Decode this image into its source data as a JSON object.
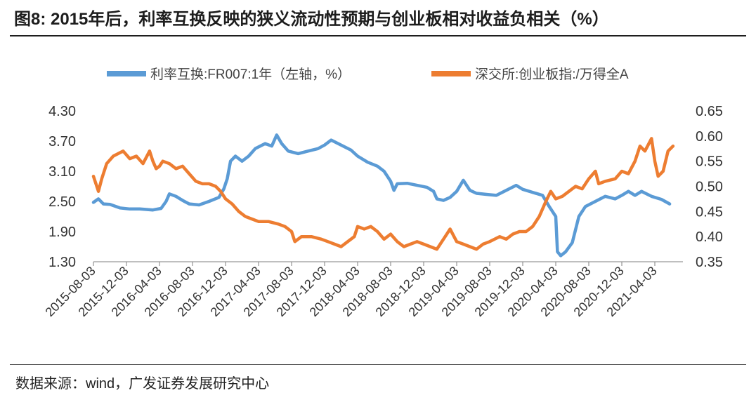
{
  "title": "图8: 2015年后，利率互换反映的狭义流动性预期与创业板相对收益负相关（%）",
  "source": "数据来源：wind，广发证券发展研究中心",
  "chart_data": {
    "type": "line",
    "x_tick_labels": [
      "2015-08-03",
      "2015-12-03",
      "2016-04-03",
      "2016-08-03",
      "2016-12-03",
      "2017-04-03",
      "2017-08-03",
      "2017-12-03",
      "2018-04-03",
      "2018-08-03",
      "2018-12-03",
      "2019-04-03",
      "2019-08-03",
      "2019-12-03",
      "2020-04-03",
      "2020-08-03",
      "2020-12-03",
      "2021-04-03"
    ],
    "y_left": {
      "ticks": [
        "4.30",
        "3.70",
        "3.10",
        "2.50",
        "1.90",
        "1.30"
      ],
      "min": 1.3,
      "max": 4.3
    },
    "y_right": {
      "ticks": [
        "0.65",
        "0.60",
        "0.55",
        "0.50",
        "0.45",
        "0.40",
        "0.35"
      ],
      "min": 0.35,
      "max": 0.65
    },
    "legend_position": "top",
    "series": [
      {
        "name": "利率互换:FR007:1年（左轴，%）",
        "axis": "left",
        "color": "#5b9bd5",
        "points": [
          [
            0,
            2.48
          ],
          [
            0.15,
            2.55
          ],
          [
            0.3,
            2.45
          ],
          [
            0.5,
            2.44
          ],
          [
            0.8,
            2.37
          ],
          [
            1.1,
            2.35
          ],
          [
            1.4,
            2.35
          ],
          [
            1.6,
            2.34
          ],
          [
            1.8,
            2.33
          ],
          [
            2.05,
            2.36
          ],
          [
            2.2,
            2.5
          ],
          [
            2.3,
            2.65
          ],
          [
            2.5,
            2.6
          ],
          [
            2.7,
            2.52
          ],
          [
            2.9,
            2.45
          ],
          [
            3.2,
            2.43
          ],
          [
            3.5,
            2.5
          ],
          [
            3.8,
            2.58
          ],
          [
            3.95,
            2.75
          ],
          [
            4.05,
            2.95
          ],
          [
            4.15,
            3.3
          ],
          [
            4.3,
            3.4
          ],
          [
            4.5,
            3.3
          ],
          [
            4.7,
            3.4
          ],
          [
            4.9,
            3.55
          ],
          [
            5.2,
            3.65
          ],
          [
            5.4,
            3.6
          ],
          [
            5.55,
            3.82
          ],
          [
            5.7,
            3.65
          ],
          [
            5.9,
            3.5
          ],
          [
            6.2,
            3.45
          ],
          [
            6.5,
            3.5
          ],
          [
            6.8,
            3.55
          ],
          [
            7.0,
            3.62
          ],
          [
            7.2,
            3.72
          ],
          [
            7.5,
            3.62
          ],
          [
            7.8,
            3.52
          ],
          [
            8.0,
            3.4
          ],
          [
            8.3,
            3.28
          ],
          [
            8.6,
            3.2
          ],
          [
            8.8,
            3.1
          ],
          [
            9.0,
            2.9
          ],
          [
            9.1,
            2.72
          ],
          [
            9.2,
            2.85
          ],
          [
            9.5,
            2.86
          ],
          [
            9.8,
            2.82
          ],
          [
            10.1,
            2.78
          ],
          [
            10.3,
            2.7
          ],
          [
            10.4,
            2.55
          ],
          [
            10.6,
            2.52
          ],
          [
            10.8,
            2.58
          ],
          [
            11.0,
            2.7
          ],
          [
            11.2,
            2.92
          ],
          [
            11.4,
            2.72
          ],
          [
            11.6,
            2.66
          ],
          [
            11.9,
            2.64
          ],
          [
            12.2,
            2.62
          ],
          [
            12.5,
            2.72
          ],
          [
            12.8,
            2.82
          ],
          [
            13.0,
            2.74
          ],
          [
            13.3,
            2.68
          ],
          [
            13.6,
            2.62
          ],
          [
            13.8,
            2.4
          ],
          [
            14.0,
            2.2
          ],
          [
            14.05,
            1.5
          ],
          [
            14.15,
            1.42
          ],
          [
            14.3,
            1.5
          ],
          [
            14.5,
            1.68
          ],
          [
            14.7,
            2.2
          ],
          [
            14.9,
            2.4
          ],
          [
            15.2,
            2.5
          ],
          [
            15.5,
            2.6
          ],
          [
            15.8,
            2.55
          ],
          [
            16.0,
            2.62
          ],
          [
            16.2,
            2.7
          ],
          [
            16.4,
            2.62
          ],
          [
            16.6,
            2.7
          ],
          [
            16.9,
            2.6
          ],
          [
            17.2,
            2.54
          ],
          [
            17.45,
            2.45
          ]
        ]
      },
      {
        "name": "深交所:创业板指:/万得全A",
        "axis": "right",
        "color": "#ed7d31",
        "points": [
          [
            0,
            0.52
          ],
          [
            0.15,
            0.49
          ],
          [
            0.25,
            0.515
          ],
          [
            0.4,
            0.545
          ],
          [
            0.6,
            0.56
          ],
          [
            0.9,
            0.57
          ],
          [
            1.1,
            0.555
          ],
          [
            1.3,
            0.56
          ],
          [
            1.5,
            0.545
          ],
          [
            1.7,
            0.57
          ],
          [
            1.8,
            0.55
          ],
          [
            1.9,
            0.535
          ],
          [
            2.0,
            0.54
          ],
          [
            2.1,
            0.55
          ],
          [
            2.3,
            0.545
          ],
          [
            2.5,
            0.535
          ],
          [
            2.7,
            0.54
          ],
          [
            2.9,
            0.525
          ],
          [
            3.1,
            0.51
          ],
          [
            3.3,
            0.505
          ],
          [
            3.5,
            0.505
          ],
          [
            3.7,
            0.5
          ],
          [
            3.85,
            0.49
          ],
          [
            4.0,
            0.475
          ],
          [
            4.2,
            0.465
          ],
          [
            4.4,
            0.45
          ],
          [
            4.6,
            0.44
          ],
          [
            4.8,
            0.435
          ],
          [
            5.0,
            0.43
          ],
          [
            5.3,
            0.43
          ],
          [
            5.6,
            0.425
          ],
          [
            5.8,
            0.42
          ],
          [
            6.0,
            0.41
          ],
          [
            6.1,
            0.39
          ],
          [
            6.3,
            0.4
          ],
          [
            6.6,
            0.4
          ],
          [
            6.9,
            0.395
          ],
          [
            7.1,
            0.39
          ],
          [
            7.3,
            0.385
          ],
          [
            7.5,
            0.38
          ],
          [
            7.7,
            0.39
          ],
          [
            7.9,
            0.4
          ],
          [
            8.0,
            0.42
          ],
          [
            8.2,
            0.415
          ],
          [
            8.4,
            0.42
          ],
          [
            8.6,
            0.41
          ],
          [
            8.8,
            0.395
          ],
          [
            9.0,
            0.405
          ],
          [
            9.2,
            0.39
          ],
          [
            9.4,
            0.38
          ],
          [
            9.6,
            0.385
          ],
          [
            9.8,
            0.39
          ],
          [
            10.0,
            0.385
          ],
          [
            10.2,
            0.38
          ],
          [
            10.4,
            0.375
          ],
          [
            10.6,
            0.395
          ],
          [
            10.8,
            0.415
          ],
          [
            11.0,
            0.39
          ],
          [
            11.2,
            0.385
          ],
          [
            11.4,
            0.38
          ],
          [
            11.6,
            0.375
          ],
          [
            11.8,
            0.385
          ],
          [
            12.0,
            0.39
          ],
          [
            12.3,
            0.4
          ],
          [
            12.5,
            0.395
          ],
          [
            12.7,
            0.405
          ],
          [
            12.9,
            0.41
          ],
          [
            13.1,
            0.41
          ],
          [
            13.3,
            0.42
          ],
          [
            13.5,
            0.44
          ],
          [
            13.7,
            0.47
          ],
          [
            13.85,
            0.49
          ],
          [
            14.0,
            0.475
          ],
          [
            14.2,
            0.48
          ],
          [
            14.4,
            0.49
          ],
          [
            14.6,
            0.5
          ],
          [
            14.8,
            0.495
          ],
          [
            15.0,
            0.515
          ],
          [
            15.2,
            0.53
          ],
          [
            15.3,
            0.505
          ],
          [
            15.5,
            0.51
          ],
          [
            15.8,
            0.515
          ],
          [
            16.0,
            0.53
          ],
          [
            16.2,
            0.525
          ],
          [
            16.4,
            0.55
          ],
          [
            16.55,
            0.58
          ],
          [
            16.7,
            0.57
          ],
          [
            16.9,
            0.595
          ],
          [
            17.0,
            0.55
          ],
          [
            17.1,
            0.52
          ],
          [
            17.25,
            0.53
          ],
          [
            17.4,
            0.57
          ],
          [
            17.55,
            0.58
          ]
        ]
      }
    ]
  }
}
